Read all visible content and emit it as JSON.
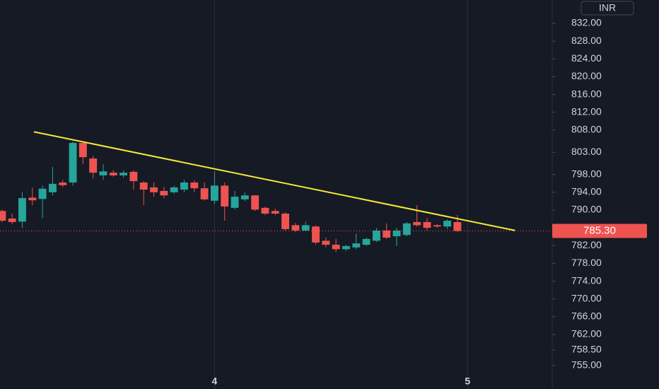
{
  "chart_data": {
    "type": "candlestick",
    "currency": "INR",
    "open": [
      789.8,
      788.1,
      787.4,
      792.8,
      792.5,
      794.0,
      796.2,
      796.2,
      805.1,
      801.6,
      797.8,
      798.4,
      797.8,
      798.6,
      796.2,
      795.1,
      794.3,
      794.0,
      794.6,
      796.2,
      794.9,
      792.1,
      795.5,
      790.5,
      792.4,
      793.3,
      790.5,
      789.8,
      789.2,
      786.6,
      785.4,
      786.3,
      783.1,
      782.2,
      781.2,
      781.6,
      782.2,
      783.1,
      785.4,
      784.1,
      784.4,
      787.3,
      787.3,
      786.6,
      786.3,
      787.3
    ],
    "high": [
      790.1,
      789.2,
      794.0,
      795.0,
      795.5,
      799.7,
      796.8,
      805.4,
      805.4,
      802.2,
      800.3,
      799.0,
      798.9,
      798.9,
      796.5,
      796.2,
      795.2,
      795.5,
      796.8,
      796.7,
      796.2,
      798.7,
      796.2,
      794.3,
      794.0,
      793.3,
      790.8,
      790.3,
      789.5,
      787.1,
      787.4,
      786.6,
      783.8,
      783.5,
      782.2,
      784.7,
      783.8,
      786.0,
      787.0,
      786.0,
      787.3,
      791.1,
      788.2,
      786.8,
      787.9,
      788.9
    ],
    "low": [
      787.3,
      786.8,
      786.0,
      791.1,
      788.2,
      793.3,
      795.2,
      795.5,
      800.3,
      797.1,
      796.8,
      797.5,
      797.3,
      794.6,
      791.1,
      793.0,
      792.7,
      793.6,
      794.0,
      794.0,
      792.1,
      791.4,
      787.6,
      790.1,
      792.0,
      789.8,
      788.9,
      788.9,
      785.4,
      785.0,
      785.2,
      782.2,
      781.6,
      780.6,
      780.8,
      781.2,
      781.9,
      782.8,
      783.5,
      781.9,
      784.1,
      786.3,
      785.4,
      786.0,
      785.7,
      785.0
    ],
    "close": [
      787.6,
      787.3,
      792.7,
      792.2,
      794.8,
      795.9,
      795.6,
      805.1,
      801.9,
      798.4,
      798.7,
      797.8,
      798.4,
      796.5,
      794.6,
      794.0,
      793.3,
      795.1,
      796.2,
      794.9,
      792.4,
      795.5,
      790.8,
      793.0,
      793.3,
      790.1,
      789.2,
      789.2,
      785.7,
      785.4,
      786.6,
      782.7,
      782.2,
      781.2,
      781.9,
      782.5,
      783.5,
      785.4,
      783.8,
      785.4,
      787.0,
      786.6,
      786.0,
      786.3,
      787.6,
      785.3
    ],
    "up_color": "#26a69a",
    "down_color": "#ef5350",
    "last_price": {
      "value": 785.3,
      "label": "785.30"
    },
    "trendline": {
      "x": [
        3.15,
        50.7
      ],
      "y": [
        807.6,
        785.4
      ],
      "color": "#f5e83a"
    },
    "xlim": [
      -0.2,
      54.3
    ],
    "xticks": [
      {
        "value": 21,
        "label": "4"
      },
      {
        "value": 46,
        "label": "5"
      }
    ],
    "ylim": [
      749.75,
      837.25
    ],
    "yticks": [
      {
        "value": 832,
        "label": "832.00"
      },
      {
        "value": 828,
        "label": "828.00"
      },
      {
        "value": 824,
        "label": "824.00"
      },
      {
        "value": 820,
        "label": "820.00"
      },
      {
        "value": 816,
        "label": "816.00"
      },
      {
        "value": 812,
        "label": "812.00"
      },
      {
        "value": 808,
        "label": "808.00"
      },
      {
        "value": 803,
        "label": "803.00"
      },
      {
        "value": 798,
        "label": "798.00"
      },
      {
        "value": 794,
        "label": "794.00"
      },
      {
        "value": 790,
        "label": "790.00"
      },
      {
        "value": 782,
        "label": "782.00"
      },
      {
        "value": 778,
        "label": "778.00"
      },
      {
        "value": 774,
        "label": "774.00"
      },
      {
        "value": 770,
        "label": "770.00"
      },
      {
        "value": 766,
        "label": "766.00"
      },
      {
        "value": 762,
        "label": "762.00"
      },
      {
        "value": 758.5,
        "label": "758.50"
      },
      {
        "value": 755,
        "label": "755.00"
      }
    ],
    "vertical_grid": true
  }
}
